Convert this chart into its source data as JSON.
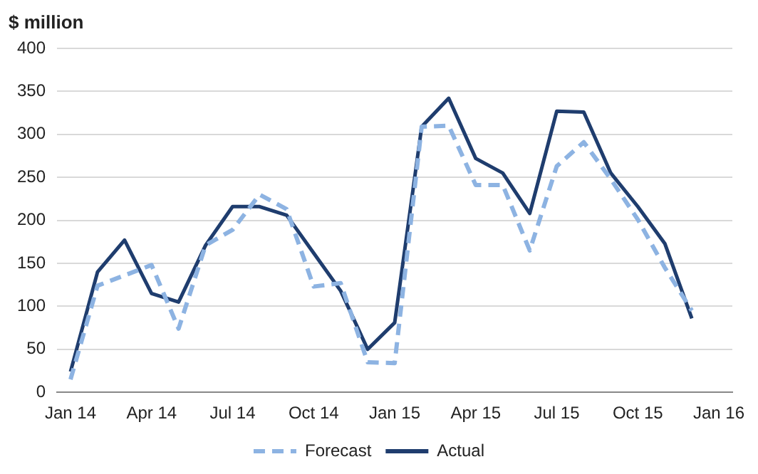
{
  "chart_data": {
    "type": "line",
    "ylabel": "$ million",
    "categories": [
      "Jan 14",
      null,
      null,
      "Apr 14",
      null,
      null,
      "Jul 14",
      null,
      null,
      "Oct 14",
      null,
      null,
      "Jan 15",
      null,
      null,
      "Apr 15",
      null,
      null,
      "Jul 15",
      null,
      null,
      "Oct 15",
      null,
      null,
      "Jan 16"
    ],
    "series": [
      {
        "name": "Forecast",
        "color": "#8db3e2",
        "line_style": "dashed",
        "values": [
          15,
          124,
          136,
          148,
          74,
          171,
          189,
          230,
          213,
          123,
          127,
          35,
          34,
          309,
          310,
          241,
          241,
          165,
          263,
          291,
          248,
          201,
          145,
          95,
          null
        ]
      },
      {
        "name": "Actual",
        "color": "#1f3d6e",
        "line_style": "solid",
        "values": [
          24,
          140,
          177,
          115,
          105,
          171,
          216,
          216,
          206,
          162,
          118,
          50,
          81,
          309,
          342,
          272,
          255,
          208,
          327,
          326,
          255,
          216,
          173,
          86,
          null
        ]
      }
    ],
    "ylim": [
      0,
      400
    ],
    "yticks": [
      0,
      50,
      100,
      150,
      200,
      250,
      300,
      350,
      400
    ],
    "grid": "y",
    "legend": "bottom",
    "marker": "none"
  }
}
